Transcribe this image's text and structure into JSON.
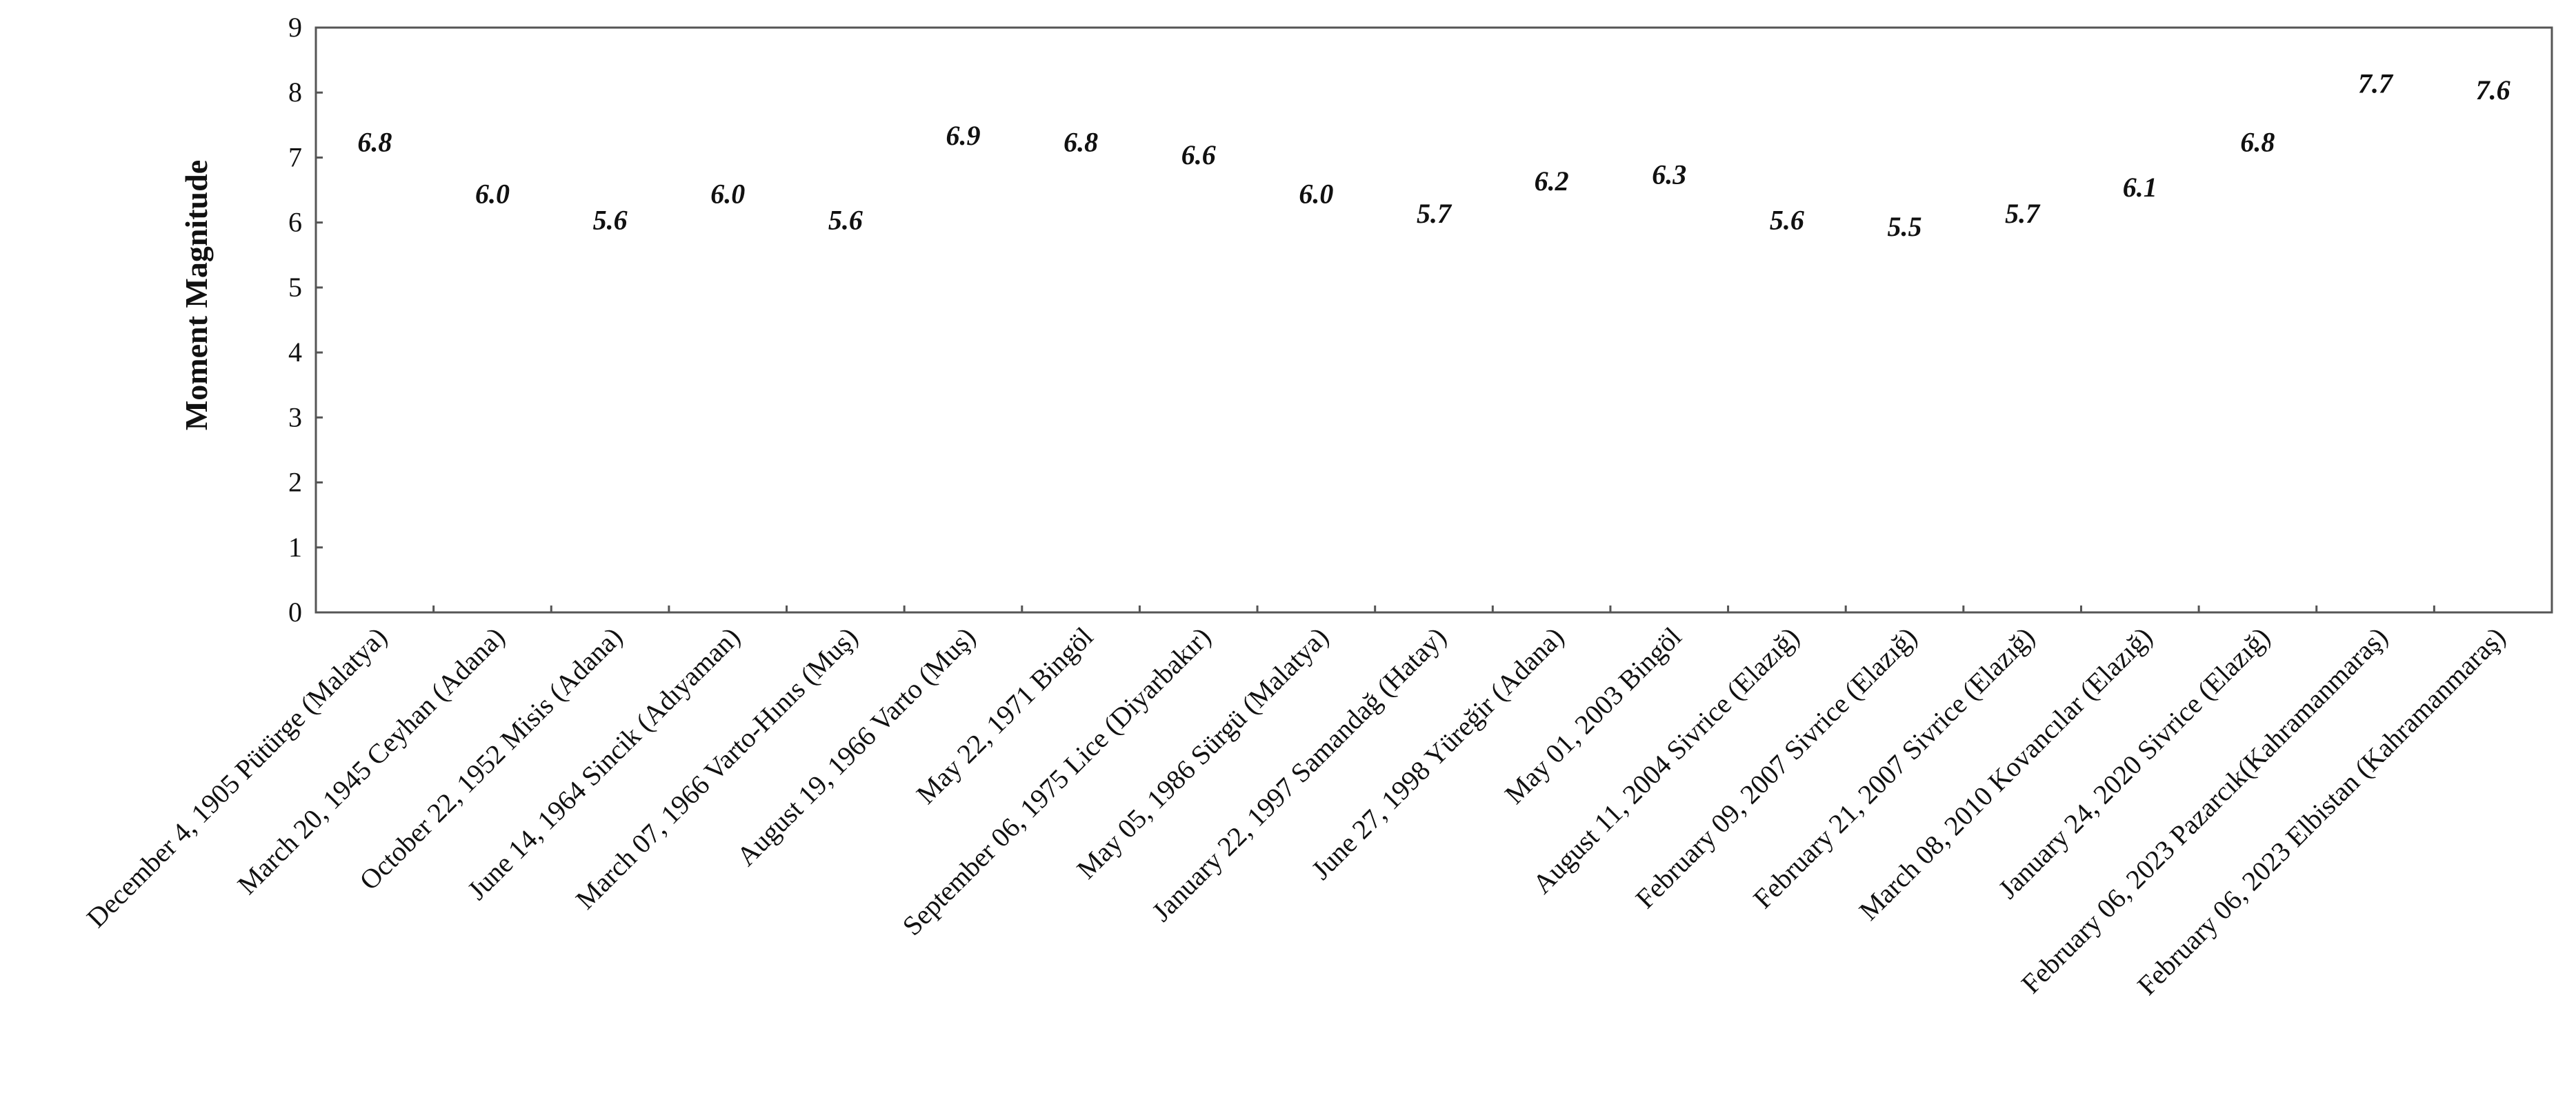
{
  "chart_data": {
    "type": "bar",
    "title": "",
    "xlabel": "",
    "ylabel": "Moment Magnitude",
    "ylim": [
      0,
      9
    ],
    "yticks": [
      0,
      1,
      2,
      3,
      4,
      5,
      6,
      7,
      8,
      9
    ],
    "grid": true,
    "legend": "none",
    "categories": [
      "December 4, 1905 Pütürge (Malatya)",
      "March 20, 1945 Ceyhan (Adana)",
      "October 22, 1952 Misis (Adana)",
      "June 14, 1964 Sincik (Adıyaman)",
      "March 07, 1966 Varto-Hınıs (Muş)",
      "August 19, 1966 Varto (Muş)",
      "May 22, 1971 Bingöl",
      "September 06, 1975 Lice (Diyarbakır)",
      "May 05, 1986 Sürgü (Malatya)",
      "January 22, 1997 Samandağ (Hatay)",
      "June 27, 1998 Yüreğir (Adana)",
      "May 01, 2003 Bingöl",
      "August 11, 2004 Sivrice (Elazığ)",
      "February 09, 2007 Sivrice (Elazığ)",
      "February 21, 2007 Sivrice (Elazığ)",
      "March 08, 2010 Kovancılar (Elazığ)",
      "January 24, 2020 Sivrice (Elazığ)",
      "February 06, 2023 Pazarcık(Kahramanmaraş)",
      "February 06, 2023 Elbistan (Kahramanmaraş)"
    ],
    "values": [
      6.8,
      6.0,
      5.6,
      6.0,
      5.6,
      6.9,
      6.8,
      6.6,
      6.0,
      5.7,
      6.2,
      6.3,
      5.6,
      5.5,
      5.7,
      6.1,
      6.8,
      7.7,
      7.6
    ],
    "value_labels": [
      "6.8",
      "6.0",
      "5.6",
      "6.0",
      "5.6",
      "6.9",
      "6.8",
      "6.6",
      "6.0",
      "5.7",
      "6.2",
      "6.3",
      "5.6",
      "5.5",
      "5.7",
      "6.1",
      "6.8",
      "7.7",
      "7.6"
    ],
    "bar_colors": [
      "#2f6b6b",
      "#f47a3c",
      "#3f9a2e",
      "#3aa3b0",
      "#d94f86",
      "#7fae2e",
      "#3d5a55",
      "#e8632e",
      "#5a7a26",
      "#2e7f86",
      "#c8406a",
      "#6f8a2a",
      "#2f93a3",
      "#f08a55",
      "#3fa032",
      "#2fa6b6",
      "#e0477a",
      "#8db83a",
      "#2f5f64"
    ]
  }
}
